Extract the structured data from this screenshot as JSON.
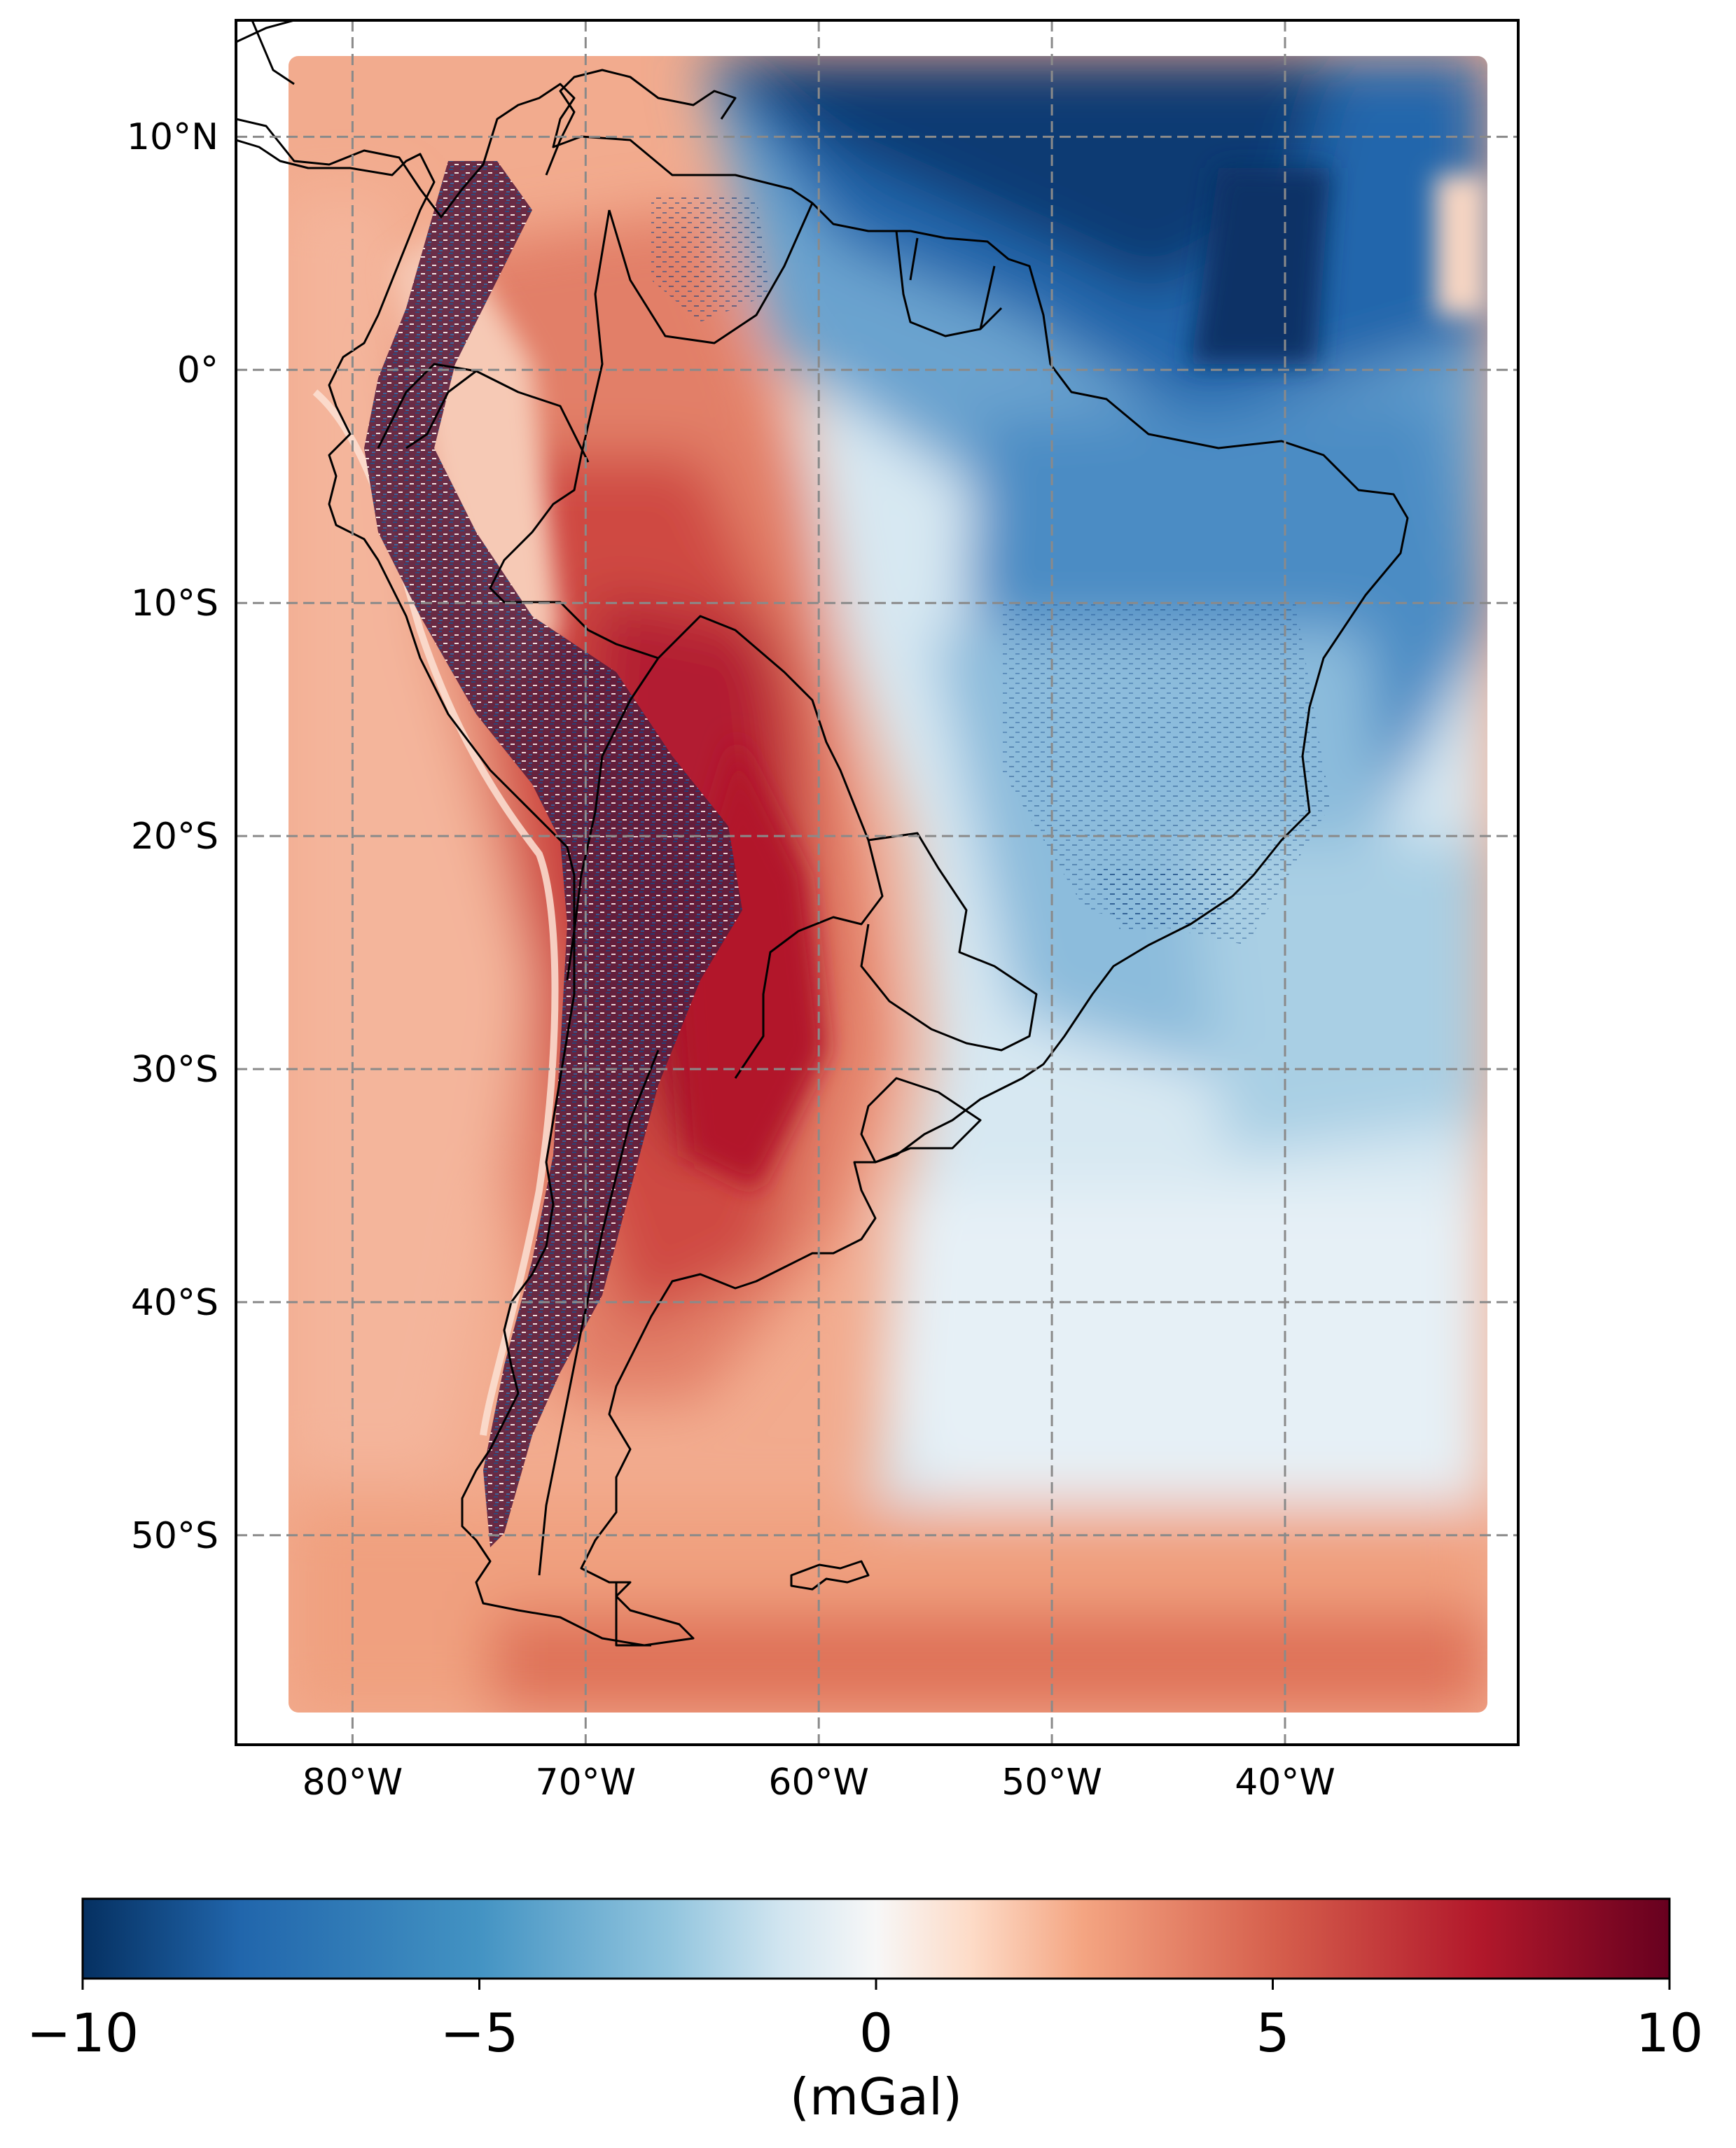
{
  "map": {
    "latitude_labels": [
      "10°N",
      "0°",
      "10°S",
      "20°S",
      "30°S",
      "40°S",
      "50°S"
    ],
    "longitude_labels": [
      "80°W",
      "70°W",
      "60°W",
      "50°W",
      "40°W"
    ],
    "extent": {
      "lon_min": -85,
      "lon_max": -30,
      "lat_min": -59,
      "lat_max": 15
    },
    "data_extent": {
      "lon_min": -82.6,
      "lon_max": -31.1,
      "lat_min": -57.9,
      "lat_max": 13.3
    },
    "gridlines": true,
    "gridline_style": "dashed gray",
    "coastlines_and_borders": true
  },
  "colorbar": {
    "tick_labels": [
      "−10",
      "−5",
      "0",
      "5",
      "10"
    ],
    "tick_values": [
      -10,
      -5,
      0,
      5,
      10
    ],
    "unit_label": "(mGal)",
    "colormap": "RdBu_r",
    "range": [
      -10,
      10
    ],
    "orientation": "horizontal",
    "placement": "bottom"
  },
  "colors": {
    "dark_blue": "#053061",
    "mid_blue": "#2166ac",
    "light_blue": "#92c5de",
    "neutral": "#f7f7f7",
    "light_red": "#f4a582",
    "mid_red": "#d6604d",
    "dark_red": "#67001f"
  }
}
